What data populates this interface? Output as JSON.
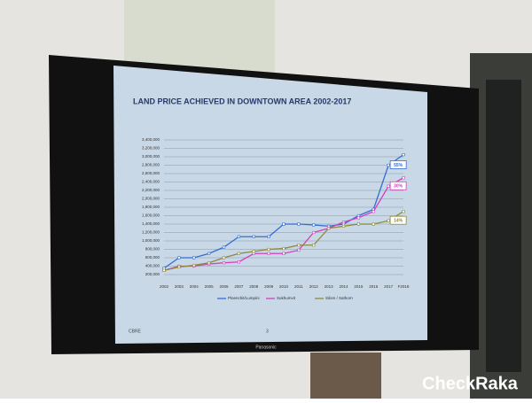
{
  "chart_data": {
    "type": "line",
    "title": "LAND PRICE ACHIEVED IN DOWNTOWN AREA 2002-2017",
    "categories": [
      "2002",
      "2003",
      "2004",
      "2005",
      "2006",
      "2007",
      "2008",
      "2009",
      "2010",
      "2011",
      "2012",
      "2013",
      "2014",
      "2015",
      "2016",
      "2017",
      "F2018"
    ],
    "series": [
      {
        "name": "Ploenchit/Lumpini",
        "color": "#2f6fd6",
        "annotation": "55%",
        "values": [
          350000,
          600000,
          600000,
          700000,
          850000,
          1100000,
          1100000,
          1100000,
          1400000,
          1400000,
          1380000,
          1350000,
          1400000,
          1600000,
          1750000,
          2800000,
          3050000
        ]
      },
      {
        "name": "Sukhumvit",
        "color": "#d43fc0",
        "annotation": "30%",
        "values": [
          300000,
          400000,
          400000,
          450000,
          480000,
          500000,
          700000,
          700000,
          700000,
          780000,
          1200000,
          1300000,
          1450000,
          1550000,
          1700000,
          2300000,
          2500000
        ]
      },
      {
        "name": "Silom / Sathorn",
        "color": "#8c8a3a",
        "annotation": "14%",
        "values": [
          300000,
          380000,
          420000,
          480000,
          600000,
          700000,
          750000,
          800000,
          820000,
          900000,
          900000,
          1300000,
          1350000,
          1400000,
          1400000,
          1480000,
          1700000
        ]
      }
    ],
    "ylim": [
      200000,
      3400000
    ],
    "yticks": [
      {
        "value": 200000,
        "label": "200,000"
      },
      {
        "value": 400000,
        "label": "400,000"
      },
      {
        "value": 600000,
        "label": "600,000"
      },
      {
        "value": 800000,
        "label": "800,000"
      },
      {
        "value": 1000000,
        "label": "1,000,000"
      },
      {
        "value": 1200000,
        "label": "1,200,000"
      },
      {
        "value": 1400000,
        "label": "1,400,000"
      },
      {
        "value": 1600000,
        "label": "1,600,000"
      },
      {
        "value": 1800000,
        "label": "1,800,000"
      },
      {
        "value": 2000000,
        "label": "2,000,000"
      },
      {
        "value": 2200000,
        "label": "2,200,000"
      },
      {
        "value": 2400000,
        "label": "2,400,000"
      },
      {
        "value": 2600000,
        "label": "2,600,000"
      },
      {
        "value": 2800000,
        "label": "2,800,000"
      },
      {
        "value": 3000000,
        "label": "3,000,000"
      },
      {
        "value": 3200000,
        "label": "3,200,000"
      },
      {
        "value": 3400000,
        "label": "3,400,000"
      }
    ],
    "grid": true
  },
  "footer": {
    "left": "CBRE",
    "page": "3"
  },
  "brand": "Panasonic",
  "watermark": "CheckRaka"
}
